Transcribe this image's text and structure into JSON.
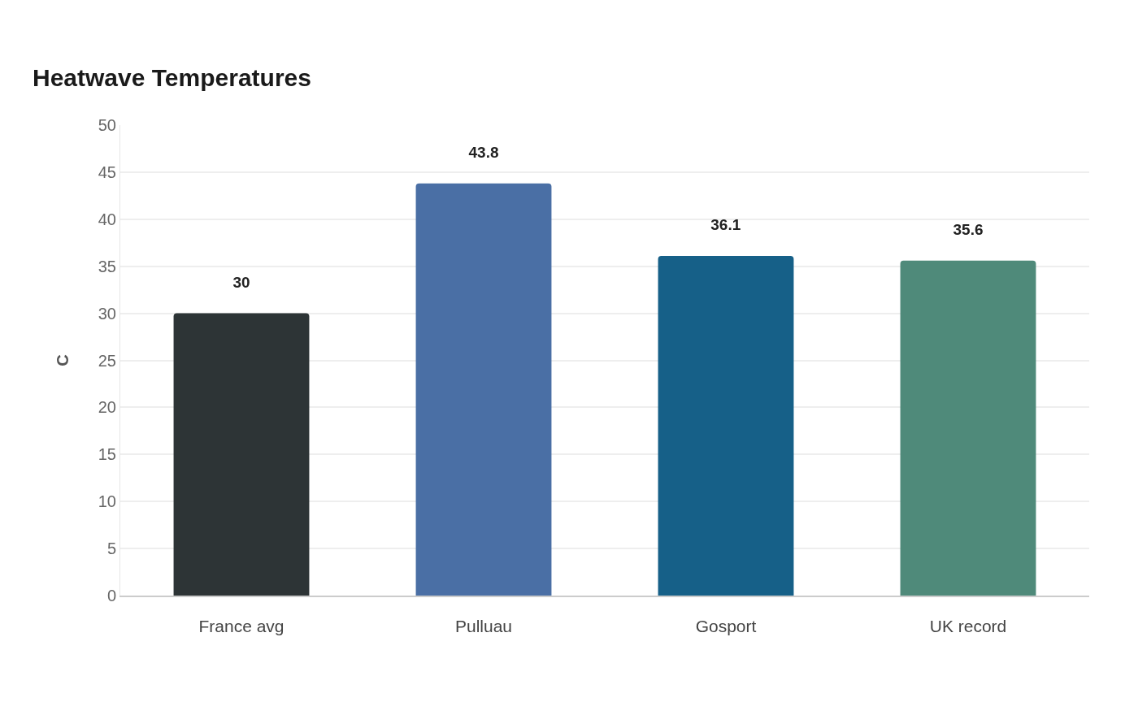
{
  "chart_data": {
    "type": "bar",
    "title": "Heatwave Temperatures",
    "ylabel": "C",
    "categories": [
      "France avg",
      "Pulluau",
      "Gosport",
      "UK record"
    ],
    "values": [
      30,
      43.8,
      36.1,
      35.6
    ],
    "colors": [
      "#2d3436",
      "#4a6fa5",
      "#166088",
      "#4f8a7a"
    ],
    "ylim": [
      0,
      50
    ],
    "yticks": [
      0,
      5,
      10,
      15,
      20,
      25,
      30,
      35,
      40,
      45,
      50
    ],
    "grid": "y",
    "data_labels": true
  }
}
